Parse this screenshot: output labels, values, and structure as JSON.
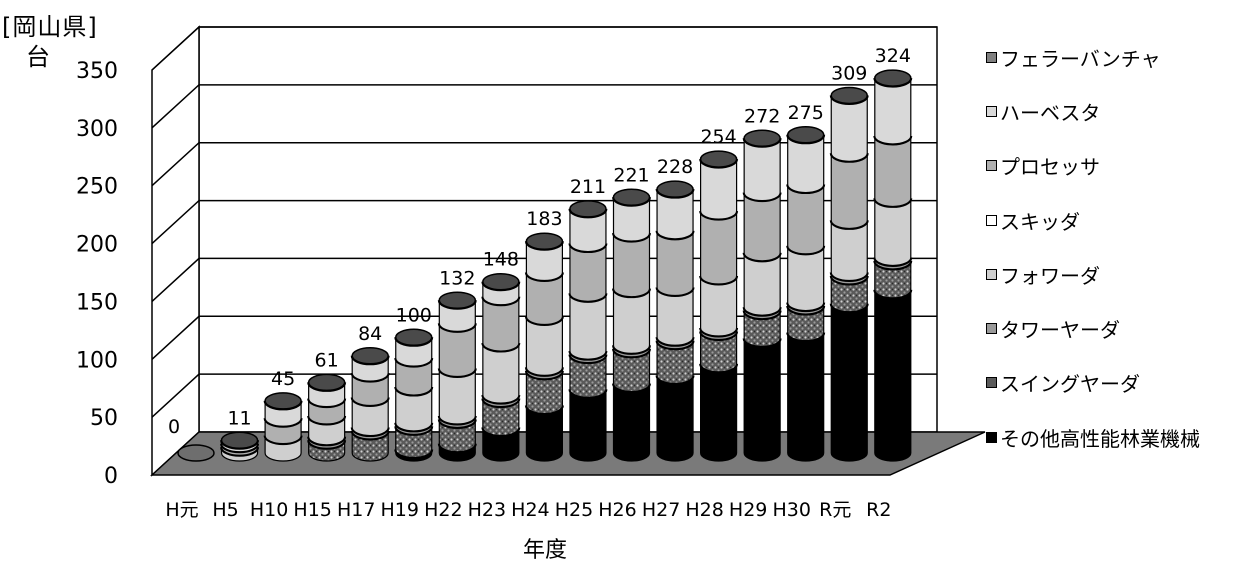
{
  "chart_data": {
    "type": "bar",
    "variant": "stacked-3d-cylinder",
    "unit_label_top": "[岡山県]",
    "unit_label": "台",
    "xlabel": "年度",
    "ylabel": "",
    "ylim": [
      0,
      350
    ],
    "yticks": [
      0,
      50,
      100,
      150,
      200,
      250,
      300,
      350
    ],
    "grid": true,
    "legend_position": "right",
    "categories": [
      "H元",
      "H5",
      "H10",
      "H15",
      "H17",
      "H19",
      "H22",
      "H23",
      "H24",
      "H25",
      "H26",
      "H27",
      "H28",
      "H29",
      "H30",
      "R元",
      "R2"
    ],
    "totals": [
      0,
      11,
      45,
      61,
      84,
      100,
      132,
      148,
      183,
      211,
      221,
      228,
      254,
      272,
      275,
      309,
      324
    ],
    "series": [
      {
        "name": "その他高性能林業機械",
        "color": "#000000",
        "pattern": "solid",
        "values": [
          0,
          0,
          0,
          0,
          0,
          3,
          8,
          22,
          41,
          55,
          60,
          67,
          77,
          99,
          104,
          129,
          141
        ]
      },
      {
        "name": "スイングヤーダ",
        "color": "#6b6b6b",
        "pattern": "dots",
        "values": [
          0,
          0,
          0,
          11,
          19,
          20,
          21,
          25,
          30,
          30,
          30,
          30,
          28,
          24,
          23,
          24,
          25
        ]
      },
      {
        "name": "タワーヤーダ",
        "color": "#9a9a9a",
        "pattern": "solid",
        "values": [
          0,
          0,
          0,
          3,
          3,
          3,
          3,
          3,
          3,
          3,
          3,
          3,
          3,
          3,
          3,
          3,
          3
        ]
      },
      {
        "name": "フォワーダ",
        "color": "#cfcfcf",
        "pattern": "solid",
        "values": [
          0,
          5,
          15,
          18,
          26,
          31,
          41,
          45,
          44,
          50,
          49,
          43,
          45,
          47,
          49,
          45,
          51
        ]
      },
      {
        "name": "スキッダ",
        "color": "#ffffff",
        "pattern": "solid",
        "values": [
          0,
          0,
          0,
          0,
          0,
          0,
          0,
          0,
          0,
          0,
          0,
          0,
          0,
          0,
          0,
          0,
          0
        ]
      },
      {
        "name": "プロセッサ",
        "color": "#b0b0b0",
        "pattern": "solid",
        "values": [
          0,
          3,
          15,
          15,
          21,
          25,
          39,
          40,
          38,
          43,
          48,
          49,
          56,
          52,
          53,
          58,
          54
        ]
      },
      {
        "name": "ハーベスタ",
        "color": "#d9d9d9",
        "pattern": "solid",
        "values": [
          0,
          3,
          15,
          14,
          15,
          18,
          20,
          13,
          27,
          30,
          31,
          36,
          45,
          47,
          43,
          50,
          50
        ]
      },
      {
        "name": "フェラーバンチャ",
        "color": "#808080",
        "pattern": "solid",
        "values": [
          0,
          0,
          0,
          0,
          0,
          0,
          0,
          0,
          0,
          0,
          0,
          0,
          0,
          0,
          0,
          0,
          0
        ]
      }
    ],
    "legend_order": [
      "フェラーバンチャ",
      "ハーベスタ",
      "プロセッサ",
      "スキッダ",
      "フォワーダ",
      "タワーヤーダ",
      "スイングヤーダ",
      "その他高性能林業機械"
    ]
  }
}
